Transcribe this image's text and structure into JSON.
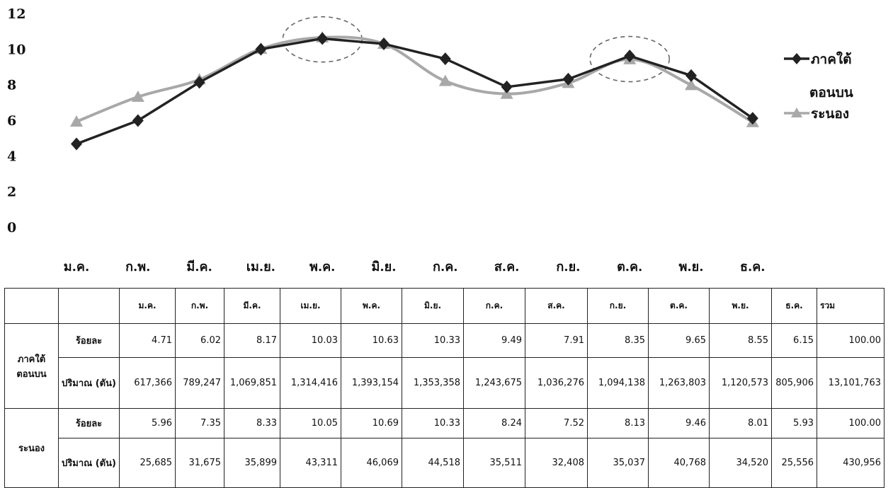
{
  "chart_data": {
    "type": "line",
    "categories": [
      "ม.ค.",
      "ก.พ.",
      "มี.ค.",
      "เม.ย.",
      "พ.ค.",
      "มิ.ย.",
      "ก.ค.",
      "ส.ค.",
      "ก.ย.",
      "ต.ค.",
      "พ.ย.",
      "ธ.ค."
    ],
    "yticks": [
      "0",
      "2",
      "4",
      "6",
      "8",
      "10",
      "12"
    ],
    "ylim": [
      0,
      12
    ],
    "grid": false,
    "legend": "right",
    "series": [
      {
        "name_lines": [
          "ภาคใต้",
          "ตอนบน"
        ],
        "color": "#222222",
        "marker": "diamond",
        "values": [
          4.71,
          6.02,
          8.17,
          10.03,
          10.63,
          10.33,
          9.49,
          7.91,
          8.35,
          9.65,
          8.55,
          6.15
        ]
      },
      {
        "name_lines": [
          "ระนอง"
        ],
        "color": "#a8a8a8",
        "marker": "triangle",
        "values": [
          5.96,
          7.35,
          8.33,
          10.05,
          10.69,
          10.33,
          8.24,
          7.52,
          8.13,
          9.46,
          8.01,
          5.93
        ]
      }
    ],
    "annotations": [
      {
        "type": "dashed-ellipse",
        "category": "พ.ค."
      },
      {
        "type": "dashed-ellipse",
        "category": "ต.ค."
      }
    ]
  },
  "table": {
    "headers": [
      "",
      "",
      "ม.ค.",
      "ก.พ.",
      "มี.ค.",
      "เม.ย.",
      "พ.ค.",
      "มิ.ย.",
      "ก.ค.",
      "ส.ค.",
      "ก.ย.",
      "ต.ค.",
      "พ.ย.",
      "ธ.ค.",
      "รวม"
    ],
    "groups": [
      {
        "region": "ภาคใต้ ตอนบน",
        "rows": [
          {
            "metric": "ร้อยละ",
            "values": [
              "4.71",
              "6.02",
              "8.17",
              "10.03",
              "10.63",
              "10.33",
              "9.49",
              "7.91",
              "8.35",
              "9.65",
              "8.55",
              "6.15",
              "100.00"
            ]
          },
          {
            "metric": "ปริมาณ (ตัน)",
            "values": [
              "617,366",
              "789,247",
              "1,069,851",
              "1,314,416",
              "1,393,154",
              "1,353,358",
              "1,243,675",
              "1,036,276",
              "1,094,138",
              "1,263,803",
              "1,120,573",
              "805,906",
              "13,101,763"
            ]
          }
        ]
      },
      {
        "region": "ระนอง",
        "rows": [
          {
            "metric": "ร้อยละ",
            "values": [
              "5.96",
              "7.35",
              "8.33",
              "10.05",
              "10.69",
              "10.33",
              "8.24",
              "7.52",
              "8.13",
              "9.46",
              "8.01",
              "5.93",
              "100.00"
            ]
          },
          {
            "metric": "ปริมาณ (ตัน)",
            "values": [
              "25,685",
              "31,675",
              "35,899",
              "43,311",
              "46,069",
              "44,518",
              "35,511",
              "32,408",
              "35,037",
              "40,768",
              "34,520",
              "25,556",
              "430,956"
            ]
          }
        ]
      }
    ]
  }
}
